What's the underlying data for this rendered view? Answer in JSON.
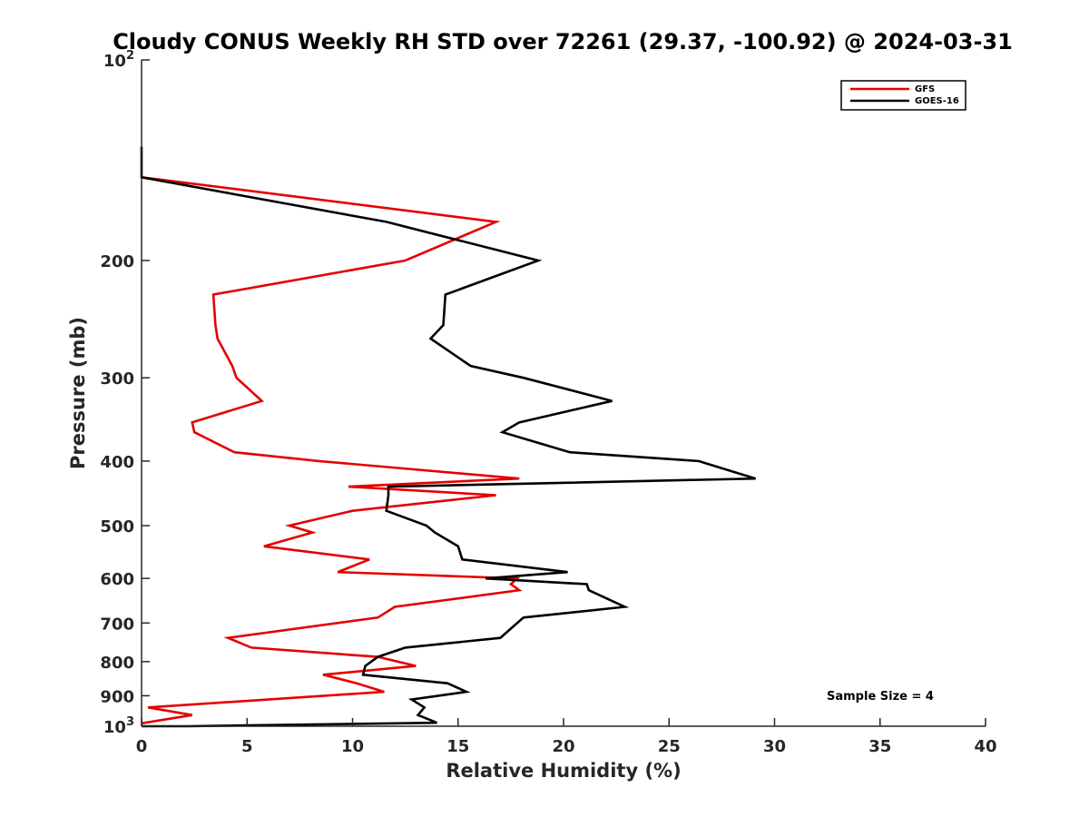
{
  "chart_data": {
    "type": "line",
    "title": "Cloudy CONUS Weekly RH STD over 72261 (29.37, -100.92) @ 2024-03-31",
    "xlabel": "Relative Humidity (%)",
    "ylabel": "Pressure (mb)",
    "xlim": [
      0,
      40
    ],
    "ylim": [
      100,
      1000
    ],
    "y_scale": "log",
    "y_reversed": true,
    "grid": false,
    "legend_position": "top-right",
    "x_ticks": [
      "0",
      "5",
      "10",
      "15",
      "20",
      "25",
      "30",
      "35",
      "40"
    ],
    "y_ticks": [
      {
        "value": 100,
        "base": "10",
        "exp": "2"
      },
      {
        "value": 200,
        "label": "200"
      },
      {
        "value": 300,
        "label": "300"
      },
      {
        "value": 400,
        "label": "400"
      },
      {
        "value": 500,
        "label": "500"
      },
      {
        "value": 600,
        "label": "600"
      },
      {
        "value": 700,
        "label": "700"
      },
      {
        "value": 800,
        "label": "800"
      },
      {
        "value": 900,
        "label": "900"
      },
      {
        "value": 1000,
        "base": "10",
        "exp": "3"
      }
    ],
    "series": [
      {
        "name": "GFS",
        "color": "#e50000",
        "points": [
          [
            0,
            150
          ],
          [
            16.8,
            175
          ],
          [
            12.5,
            200
          ],
          [
            3.4,
            225
          ],
          [
            3.5,
            250
          ],
          [
            3.6,
            262
          ],
          [
            4.3,
            288
          ],
          [
            4.5,
            300
          ],
          [
            5.7,
            325
          ],
          [
            2.4,
            350
          ],
          [
            2.5,
            362
          ],
          [
            4.4,
            388
          ],
          [
            8.4,
            400
          ],
          [
            17.9,
            425
          ],
          [
            9.8,
            437
          ],
          [
            16.8,
            450
          ],
          [
            10.0,
            475
          ],
          [
            7.0,
            500
          ],
          [
            8.1,
            512
          ],
          [
            5.8,
            537
          ],
          [
            10.8,
            562
          ],
          [
            9.3,
            587
          ],
          [
            17.8,
            600
          ],
          [
            17.5,
            612
          ],
          [
            17.9,
            625
          ],
          [
            12.0,
            662
          ],
          [
            11.2,
            687
          ],
          [
            4.1,
            737
          ],
          [
            5.2,
            762
          ],
          [
            11.2,
            787
          ],
          [
            13.0,
            812
          ],
          [
            8.6,
            837
          ],
          [
            10.2,
            862
          ],
          [
            11.5,
            888
          ],
          [
            0.3,
            937
          ],
          [
            2.4,
            962
          ],
          [
            0,
            990
          ]
        ]
      },
      {
        "name": "GOES-16",
        "color": "#000000",
        "points": [
          [
            0,
            135
          ],
          [
            0,
            150
          ],
          [
            11.6,
            175
          ],
          [
            18.8,
            200
          ],
          [
            14.4,
            225
          ],
          [
            14.3,
            250
          ],
          [
            13.7,
            262
          ],
          [
            15.6,
            288
          ],
          [
            18.1,
            300
          ],
          [
            22.3,
            325
          ],
          [
            17.9,
            350
          ],
          [
            17.1,
            362
          ],
          [
            20.3,
            388
          ],
          [
            26.4,
            400
          ],
          [
            29.1,
            425
          ],
          [
            11.7,
            437
          ],
          [
            11.7,
            450
          ],
          [
            11.6,
            475
          ],
          [
            13.5,
            500
          ],
          [
            13.9,
            512
          ],
          [
            15.0,
            537
          ],
          [
            15.2,
            562
          ],
          [
            20.2,
            587
          ],
          [
            16.3,
            600
          ],
          [
            21.1,
            612
          ],
          [
            21.2,
            625
          ],
          [
            22.9,
            662
          ],
          [
            18.1,
            687
          ],
          [
            17.0,
            737
          ],
          [
            12.5,
            762
          ],
          [
            11.2,
            787
          ],
          [
            10.6,
            812
          ],
          [
            10.5,
            837
          ],
          [
            14.5,
            862
          ],
          [
            15.4,
            888
          ],
          [
            12.8,
            912
          ],
          [
            13.4,
            937
          ],
          [
            13.1,
            962
          ],
          [
            14.0,
            988
          ],
          [
            2.2,
            1000
          ],
          [
            2.5,
            1000
          ],
          [
            0,
            1000
          ]
        ]
      }
    ],
    "annotations": [
      "Sample Size = 4"
    ]
  }
}
